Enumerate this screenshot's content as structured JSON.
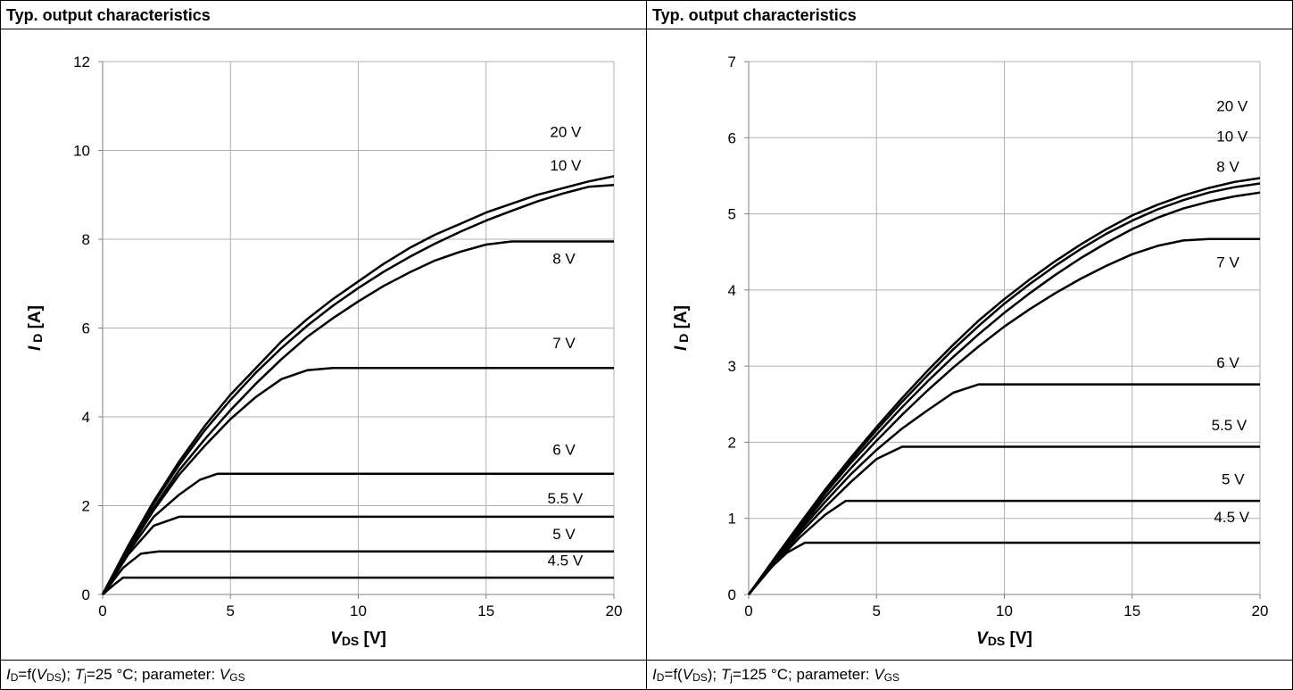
{
  "panels": [
    {
      "header": "Typ. output characteristics",
      "footer": {
        "id_var": "I",
        "id_sub": "D",
        "mid1": "=f(",
        "vds_var": "V",
        "vds_sub": "DS",
        "mid2": "); ",
        "tj_var": "T",
        "tj_sub": "j",
        "mid3": "=25 °C; parameter: ",
        "vgs_var": "V",
        "vgs_sub": "GS"
      }
    },
    {
      "header": "Typ. output characteristics",
      "footer": {
        "id_var": "I",
        "id_sub": "D",
        "mid1": "=f(",
        "vds_var": "V",
        "vds_sub": "DS",
        "mid2": "); ",
        "tj_var": "T",
        "tj_sub": "j",
        "mid3": "=125 °C; parameter: ",
        "vgs_var": "V",
        "vgs_sub": "GS"
      }
    }
  ],
  "chart_data": [
    {
      "type": "line",
      "xlabel": {
        "var": "V",
        "sub": "DS",
        "unit": " [V]"
      },
      "ylabel": {
        "var": "I",
        "sub": "D",
        "unit": " [A]"
      },
      "xlim": [
        0,
        20
      ],
      "ylim": [
        0,
        12
      ],
      "xticks": [
        0,
        5,
        10,
        15,
        20
      ],
      "yticks": [
        0,
        2,
        4,
        6,
        8,
        10,
        12
      ],
      "grid": true,
      "series": [
        {
          "name": "20 V",
          "label_at": [
            17.5,
            10.3
          ],
          "x": [
            0,
            1,
            2,
            3,
            4,
            5,
            6,
            7,
            8,
            9,
            10,
            11,
            12,
            13,
            14,
            15,
            16,
            17,
            18,
            19,
            20
          ],
          "y": [
            0,
            1.1,
            2.1,
            3.0,
            3.8,
            4.5,
            5.1,
            5.7,
            6.2,
            6.65,
            7.05,
            7.45,
            7.8,
            8.1,
            8.35,
            8.6,
            8.8,
            9.0,
            9.15,
            9.3,
            9.42
          ]
        },
        {
          "name": "10 V",
          "label_at": [
            17.5,
            9.55
          ],
          "x": [
            0,
            1,
            2,
            3,
            4,
            5,
            6,
            7,
            8,
            9,
            10,
            11,
            12,
            13,
            14,
            15,
            16,
            17,
            18,
            19,
            20
          ],
          "y": [
            0,
            1.08,
            2.05,
            2.92,
            3.7,
            4.38,
            5.0,
            5.55,
            6.05,
            6.5,
            6.9,
            7.27,
            7.6,
            7.9,
            8.17,
            8.42,
            8.64,
            8.85,
            9.03,
            9.18,
            9.22
          ]
        },
        {
          "name": "8 V",
          "label_at": [
            17.6,
            7.45
          ],
          "x": [
            0,
            1,
            2,
            3,
            4,
            5,
            6,
            7,
            8,
            9,
            10,
            11,
            12,
            13,
            14,
            15,
            16,
            17,
            18,
            19,
            20
          ],
          "y": [
            0,
            1.05,
            1.95,
            2.8,
            3.5,
            4.15,
            4.75,
            5.3,
            5.8,
            6.22,
            6.6,
            6.95,
            7.25,
            7.52,
            7.72,
            7.88,
            7.95,
            7.95,
            7.95,
            7.95,
            7.95
          ]
        },
        {
          "name": "7 V",
          "label_at": [
            17.6,
            5.55
          ],
          "x": [
            0,
            1,
            2,
            3,
            4,
            5,
            6,
            7,
            8,
            9,
            10,
            15,
            20
          ],
          "y": [
            0,
            1.0,
            1.9,
            2.7,
            3.35,
            3.95,
            4.45,
            4.85,
            5.05,
            5.1,
            5.1,
            5.1,
            5.1
          ]
        },
        {
          "name": "6 V",
          "label_at": [
            17.6,
            3.15
          ],
          "x": [
            0,
            1,
            2,
            3,
            3.8,
            4.5,
            10,
            20
          ],
          "y": [
            0,
            0.95,
            1.75,
            2.25,
            2.58,
            2.72,
            2.72,
            2.72
          ]
        },
        {
          "name": "5.5 V",
          "label_at": [
            17.4,
            2.05
          ],
          "x": [
            0,
            1,
            2,
            3,
            10,
            20
          ],
          "y": [
            0,
            0.9,
            1.55,
            1.75,
            1.75,
            1.75
          ]
        },
        {
          "name": "5 V",
          "label_at": [
            17.6,
            1.25
          ],
          "x": [
            0,
            0.8,
            1.5,
            2.2,
            10,
            20
          ],
          "y": [
            0,
            0.6,
            0.92,
            0.97,
            0.97,
            0.97
          ]
        },
        {
          "name": "4.5 V",
          "label_at": [
            17.4,
            0.65
          ],
          "x": [
            0,
            0.4,
            0.8,
            10,
            20
          ],
          "y": [
            0,
            0.2,
            0.38,
            0.38,
            0.38
          ]
        }
      ]
    },
    {
      "type": "line",
      "xlabel": {
        "var": "V",
        "sub": "DS",
        "unit": " [V]"
      },
      "ylabel": {
        "var": "I",
        "sub": "D",
        "unit": " [A]"
      },
      "xlim": [
        0,
        20
      ],
      "ylim": [
        0,
        7
      ],
      "xticks": [
        0,
        5,
        10,
        15,
        20
      ],
      "yticks": [
        0,
        1,
        2,
        3,
        4,
        5,
        6,
        7
      ],
      "grid": true,
      "series": [
        {
          "name": "20 V",
          "label_at": [
            18.3,
            6.35
          ],
          "x": [
            0,
            1,
            2,
            3,
            4,
            5,
            6,
            7,
            8,
            9,
            10,
            11,
            12,
            13,
            14,
            15,
            16,
            17,
            18,
            19,
            20
          ],
          "y": [
            0,
            0.47,
            0.93,
            1.38,
            1.8,
            2.2,
            2.58,
            2.94,
            3.28,
            3.6,
            3.88,
            4.14,
            4.38,
            4.6,
            4.8,
            4.98,
            5.12,
            5.24,
            5.34,
            5.42,
            5.47
          ]
        },
        {
          "name": "10 V",
          "label_at": [
            18.3,
            5.95
          ],
          "x": [
            0,
            1,
            2,
            3,
            4,
            5,
            6,
            7,
            8,
            9,
            10,
            11,
            12,
            13,
            14,
            15,
            16,
            17,
            18,
            19,
            20
          ],
          "y": [
            0,
            0.46,
            0.92,
            1.36,
            1.77,
            2.16,
            2.53,
            2.88,
            3.22,
            3.53,
            3.82,
            4.08,
            4.32,
            4.54,
            4.74,
            4.91,
            5.06,
            5.18,
            5.28,
            5.35,
            5.4
          ]
        },
        {
          "name": "8 V",
          "label_at": [
            18.3,
            5.55
          ],
          "x": [
            0,
            1,
            2,
            3,
            4,
            5,
            6,
            7,
            8,
            9,
            10,
            11,
            12,
            13,
            14,
            15,
            16,
            17,
            18,
            19,
            20
          ],
          "y": [
            0,
            0.45,
            0.9,
            1.33,
            1.73,
            2.1,
            2.46,
            2.8,
            3.12,
            3.42,
            3.7,
            3.96,
            4.2,
            4.42,
            4.62,
            4.8,
            4.95,
            5.07,
            5.16,
            5.23,
            5.28
          ]
        },
        {
          "name": "7 V",
          "label_at": [
            18.3,
            4.3
          ],
          "x": [
            0,
            1,
            2,
            3,
            4,
            5,
            6,
            7,
            8,
            9,
            10,
            11,
            12,
            13,
            14,
            15,
            16,
            17,
            18,
            19,
            20
          ],
          "y": [
            0,
            0.44,
            0.87,
            1.28,
            1.66,
            2.02,
            2.36,
            2.68,
            2.98,
            3.26,
            3.52,
            3.75,
            3.96,
            4.15,
            4.32,
            4.47,
            4.58,
            4.65,
            4.67,
            4.67,
            4.67
          ]
        },
        {
          "name": "6 V",
          "label_at": [
            18.3,
            2.98
          ],
          "x": [
            0,
            1,
            2,
            3,
            4,
            5,
            6,
            7,
            8,
            9,
            20
          ],
          "y": [
            0,
            0.43,
            0.84,
            1.22,
            1.58,
            1.9,
            2.18,
            2.42,
            2.65,
            2.76,
            2.76
          ]
        },
        {
          "name": "5.5 V",
          "label_at": [
            18.1,
            2.16
          ],
          "x": [
            0,
            1,
            2,
            3,
            4,
            5,
            6,
            20
          ],
          "y": [
            0,
            0.42,
            0.8,
            1.15,
            1.48,
            1.78,
            1.94,
            1.94
          ]
        },
        {
          "name": "5 V",
          "label_at": [
            18.5,
            1.45
          ],
          "x": [
            0,
            1,
            2,
            3,
            3.8,
            20
          ],
          "y": [
            0,
            0.4,
            0.75,
            1.05,
            1.23,
            1.23
          ]
        },
        {
          "name": "4.5 V",
          "label_at": [
            18.2,
            0.95
          ],
          "x": [
            0,
            0.7,
            1.5,
            2.2,
            20
          ],
          "y": [
            0,
            0.3,
            0.55,
            0.68,
            0.68
          ]
        }
      ]
    }
  ]
}
